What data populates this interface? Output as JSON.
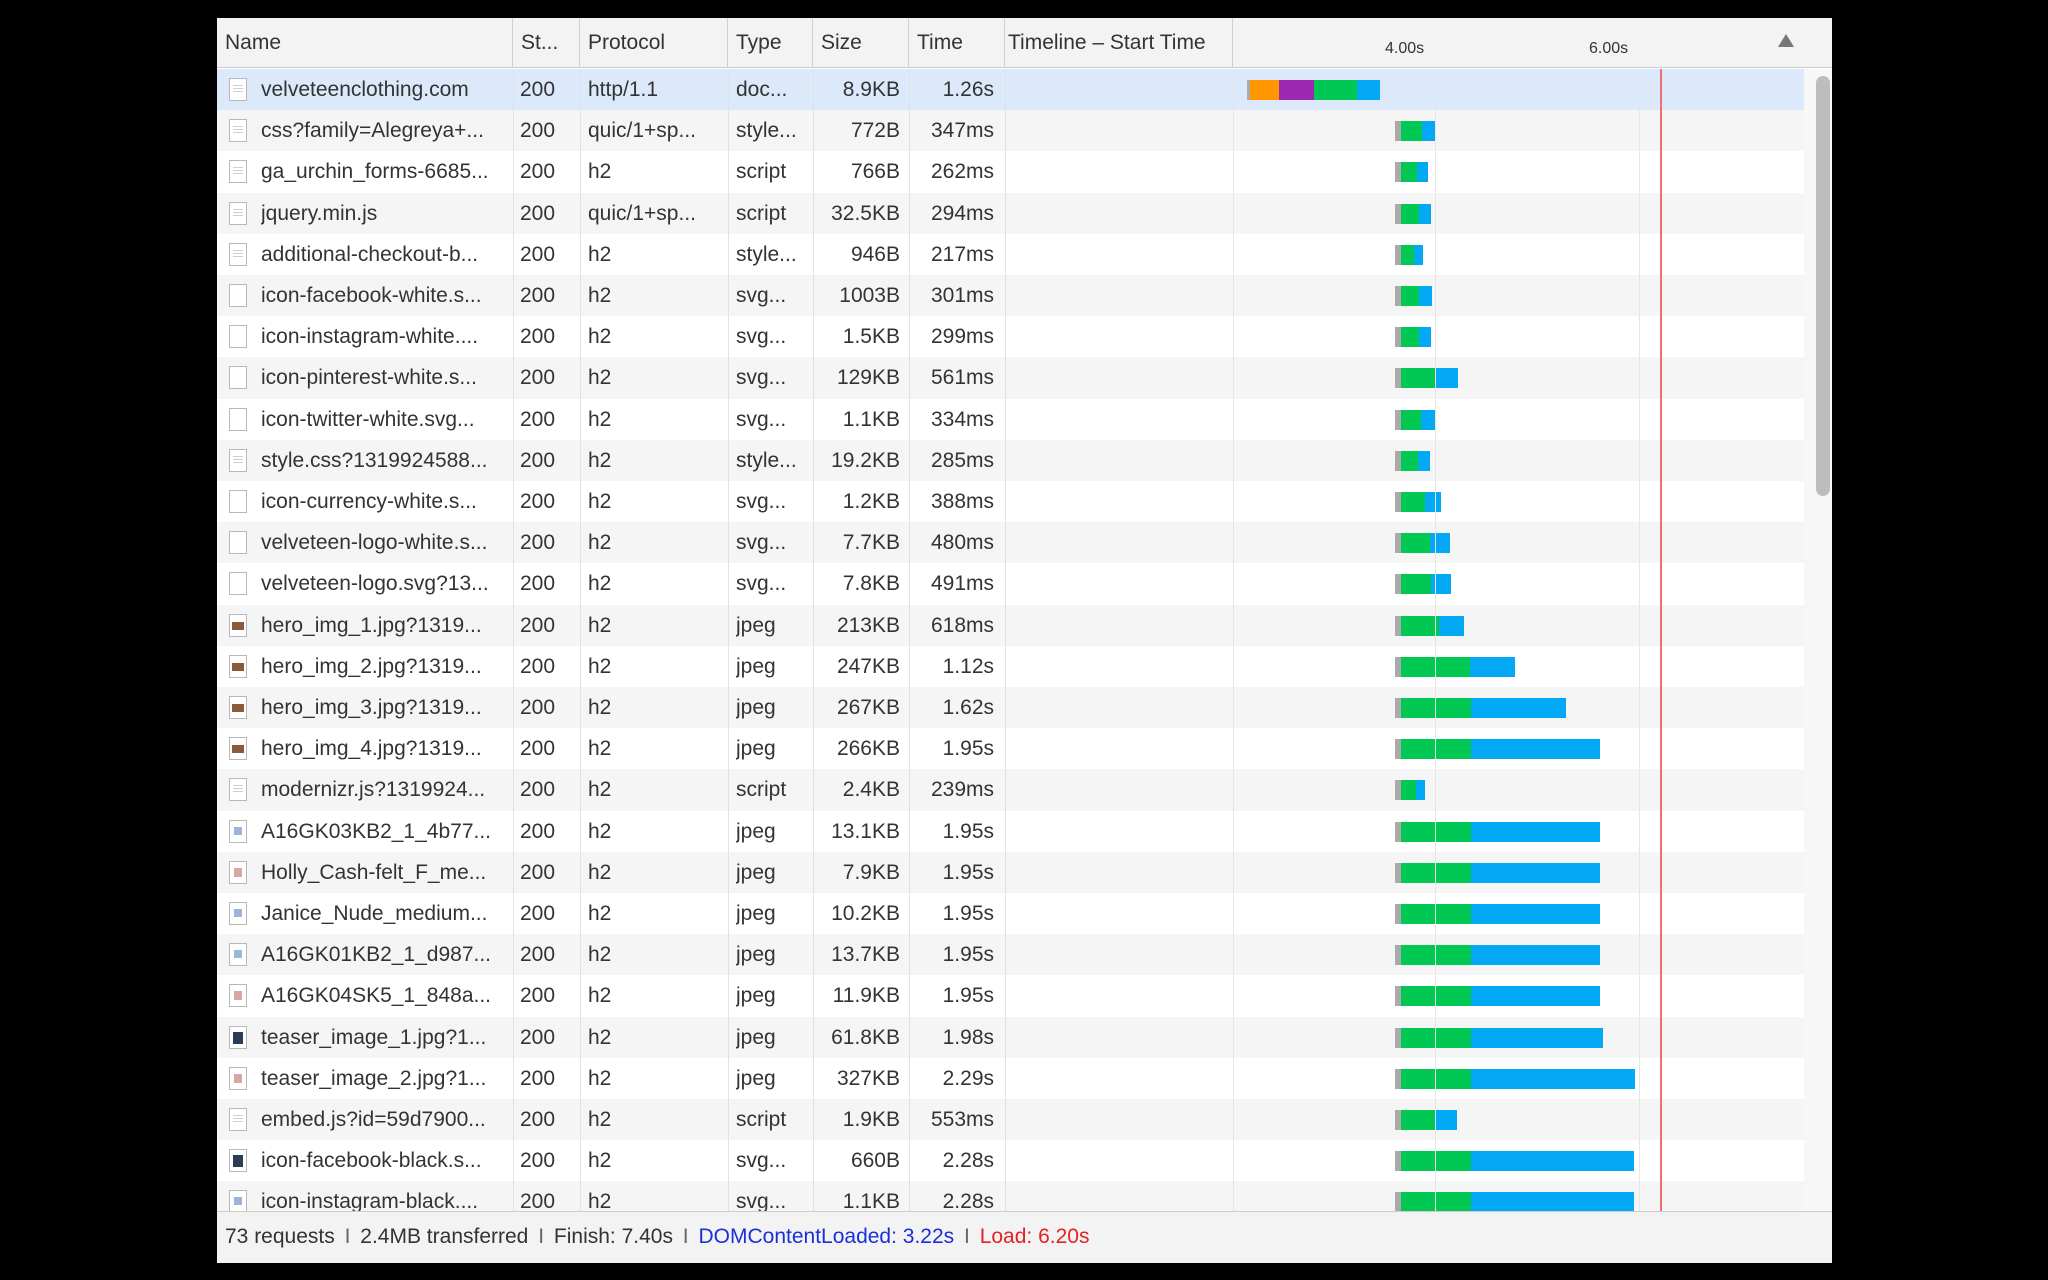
{
  "header": {
    "name": "Name",
    "status": "St...",
    "protocol": "Protocol",
    "type": "Type",
    "size": "Size",
    "time": "Time",
    "timeline": "Timeline – Start Time",
    "tick1": "4.00s",
    "tick2": "6.00s"
  },
  "rows": [
    {
      "name": "velveteenclothing.com",
      "status": "200",
      "protocol": "http/1.1",
      "type": "doc...",
      "size": "8.9KB",
      "time": "1.26s",
      "icon": "document-icon"
    },
    {
      "name": "css?family=Alegreya+...",
      "status": "200",
      "protocol": "quic/1+sp...",
      "type": "style...",
      "size": "772B",
      "time": "347ms",
      "icon": "stylesheet-file-icon"
    },
    {
      "name": "ga_urchin_forms-6685...",
      "status": "200",
      "protocol": "h2",
      "type": "script",
      "size": "766B",
      "time": "262ms",
      "icon": "script-file-icon"
    },
    {
      "name": "jquery.min.js",
      "status": "200",
      "protocol": "quic/1+sp...",
      "type": "script",
      "size": "32.5KB",
      "time": "294ms",
      "icon": "script-file-icon"
    },
    {
      "name": "additional-checkout-b...",
      "status": "200",
      "protocol": "h2",
      "type": "style...",
      "size": "946B",
      "time": "217ms",
      "icon": "stylesheet-file-icon"
    },
    {
      "name": "icon-facebook-white.s...",
      "status": "200",
      "protocol": "h2",
      "type": "svg...",
      "size": "1003B",
      "time": "301ms",
      "icon": "blank-image-icon"
    },
    {
      "name": "icon-instagram-white....",
      "status": "200",
      "protocol": "h2",
      "type": "svg...",
      "size": "1.5KB",
      "time": "299ms",
      "icon": "blank-image-icon"
    },
    {
      "name": "icon-pinterest-white.s...",
      "status": "200",
      "protocol": "h2",
      "type": "svg...",
      "size": "129KB",
      "time": "561ms",
      "icon": "blank-image-icon"
    },
    {
      "name": "icon-twitter-white.svg...",
      "status": "200",
      "protocol": "h2",
      "type": "svg...",
      "size": "1.1KB",
      "time": "334ms",
      "icon": "blank-image-icon"
    },
    {
      "name": "style.css?1319924588...",
      "status": "200",
      "protocol": "h2",
      "type": "style...",
      "size": "19.2KB",
      "time": "285ms",
      "icon": "stylesheet-file-icon"
    },
    {
      "name": "icon-currency-white.s...",
      "status": "200",
      "protocol": "h2",
      "type": "svg...",
      "size": "1.2KB",
      "time": "388ms",
      "icon": "blank-image-icon"
    },
    {
      "name": "velveteen-logo-white.s...",
      "status": "200",
      "protocol": "h2",
      "type": "svg...",
      "size": "7.7KB",
      "time": "480ms",
      "icon": "blank-image-icon"
    },
    {
      "name": "velveteen-logo.svg?13...",
      "status": "200",
      "protocol": "h2",
      "type": "svg...",
      "size": "7.8KB",
      "time": "491ms",
      "icon": "blank-image-icon"
    },
    {
      "name": "hero_img_1.jpg?1319...",
      "status": "200",
      "protocol": "h2",
      "type": "jpeg",
      "size": "213KB",
      "time": "618ms",
      "icon": "image-thumbnail-icon"
    },
    {
      "name": "hero_img_2.jpg?1319...",
      "status": "200",
      "protocol": "h2",
      "type": "jpeg",
      "size": "247KB",
      "time": "1.12s",
      "icon": "image-thumbnail-icon"
    },
    {
      "name": "hero_img_3.jpg?1319...",
      "status": "200",
      "protocol": "h2",
      "type": "jpeg",
      "size": "267KB",
      "time": "1.62s",
      "icon": "image-thumbnail-icon"
    },
    {
      "name": "hero_img_4.jpg?1319...",
      "status": "200",
      "protocol": "h2",
      "type": "jpeg",
      "size": "266KB",
      "time": "1.95s",
      "icon": "image-thumbnail-icon"
    },
    {
      "name": "modernizr.js?1319924...",
      "status": "200",
      "protocol": "h2",
      "type": "script",
      "size": "2.4KB",
      "time": "239ms",
      "icon": "script-file-icon"
    },
    {
      "name": "A16GK03KB2_1_4b77...",
      "status": "200",
      "protocol": "h2",
      "type": "jpeg",
      "size": "13.1KB",
      "time": "1.95s",
      "icon": "image-thumbnail-icon"
    },
    {
      "name": "Holly_Cash-felt_F_me...",
      "status": "200",
      "protocol": "h2",
      "type": "jpeg",
      "size": "7.9KB",
      "time": "1.95s",
      "icon": "image-thumbnail-icon"
    },
    {
      "name": "Janice_Nude_medium...",
      "status": "200",
      "protocol": "h2",
      "type": "jpeg",
      "size": "10.2KB",
      "time": "1.95s",
      "icon": "image-thumbnail-icon"
    },
    {
      "name": "A16GK01KB2_1_d987...",
      "status": "200",
      "protocol": "h2",
      "type": "jpeg",
      "size": "13.7KB",
      "time": "1.95s",
      "icon": "image-thumbnail-icon"
    },
    {
      "name": "A16GK04SK5_1_848a...",
      "status": "200",
      "protocol": "h2",
      "type": "jpeg",
      "size": "11.9KB",
      "time": "1.95s",
      "icon": "image-thumbnail-icon"
    },
    {
      "name": "teaser_image_1.jpg?1...",
      "status": "200",
      "protocol": "h2",
      "type": "jpeg",
      "size": "61.8KB",
      "time": "1.98s",
      "icon": "image-thumbnail-icon"
    },
    {
      "name": "teaser_image_2.jpg?1...",
      "status": "200",
      "protocol": "h2",
      "type": "jpeg",
      "size": "327KB",
      "time": "2.29s",
      "icon": "image-thumbnail-icon"
    },
    {
      "name": "embed.js?id=59d7900...",
      "status": "200",
      "protocol": "h2",
      "type": "script",
      "size": "1.9KB",
      "time": "553ms",
      "icon": "script-file-icon"
    },
    {
      "name": "icon-facebook-black.s...",
      "status": "200",
      "protocol": "h2",
      "type": "svg...",
      "size": "660B",
      "time": "2.28s",
      "icon": "image-thumbnail-icon"
    },
    {
      "name": "icon-instagram-black....",
      "status": "200",
      "protocol": "h2",
      "type": "svg...",
      "size": "1.1KB",
      "time": "2.28s",
      "icon": "image-thumbnail-icon"
    }
  ],
  "footer": {
    "requests": "73 requests",
    "transferred": "2.4MB transferred",
    "finish": "Finish: 7.40s",
    "dcl": "DOMContentLoaded: 3.22s",
    "load": "Load: 6.20s",
    "sep": "I"
  },
  "colors": {
    "waiting": "#00c853",
    "receiving": "#03a9f4",
    "dns": "#ff9800",
    "ssl": "#9c27b0",
    "stalled": "#aaaaaa",
    "dcl_line": "#1a2fd8",
    "load_line": "#e32222"
  }
}
